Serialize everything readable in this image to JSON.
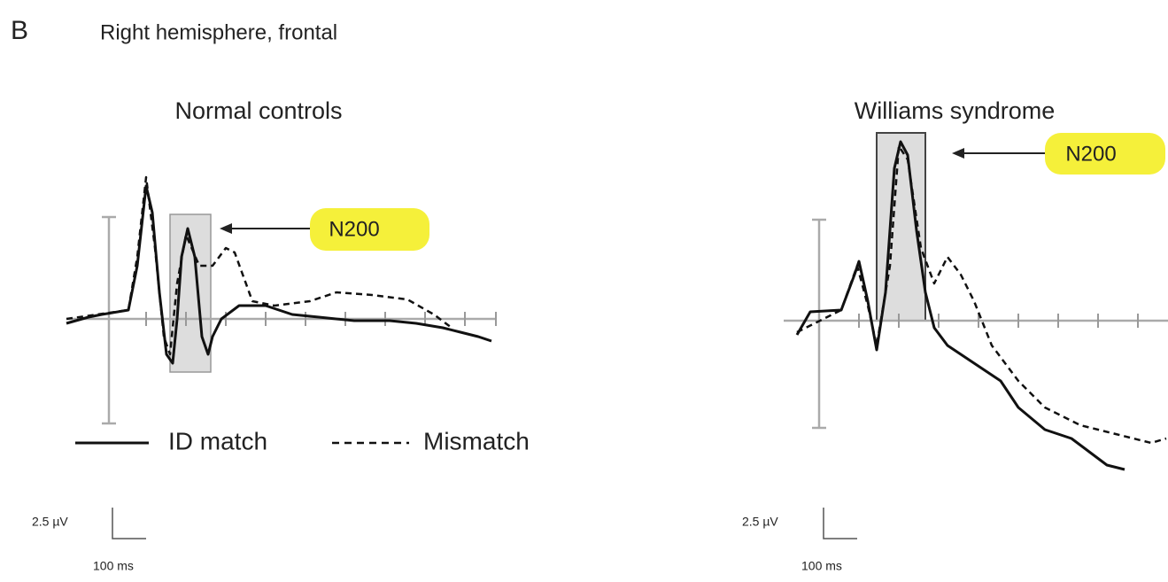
{
  "figure": {
    "letter": "B",
    "title": "Right hemisphere, frontal",
    "panels": [
      {
        "title": "Normal controls",
        "label": "N200",
        "scale_voltage": "2.5 µV",
        "scale_time": "100 ms"
      },
      {
        "title": "Williams syndrome",
        "label": "N200",
        "scale_voltage": "2.5 µV",
        "scale_time": "100 ms"
      }
    ],
    "legend": [
      "ID match",
      "Mismatch"
    ]
  }
}
